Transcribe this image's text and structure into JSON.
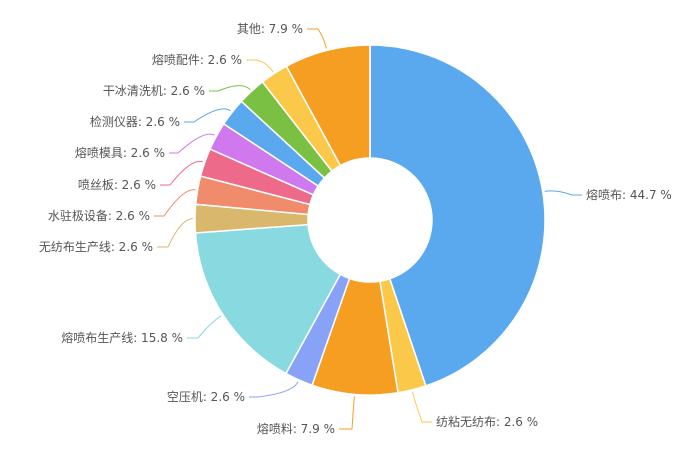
{
  "chart_data": {
    "type": "pie",
    "donut": true,
    "start_angle_deg": 90,
    "direction": "clockwise",
    "slices": [
      {
        "name": "熔喷布",
        "value": 44.7,
        "label": "熔喷布: 44.7 %",
        "color": "#5aa8ee"
      },
      {
        "name": "纺粘无纺布",
        "value": 2.6,
        "label": "纺粘无纺布: 2.6 %",
        "color": "#fbc84a"
      },
      {
        "name": "熔喷料",
        "value": 7.9,
        "label": "熔喷料: 7.9 %",
        "color": "#f59e21"
      },
      {
        "name": "空压机",
        "value": 2.6,
        "label": "空压机: 2.6 %",
        "color": "#88a2f7"
      },
      {
        "name": "熔喷布生产线",
        "value": 15.8,
        "label": "熔喷布生产线: 15.8 %",
        "color": "#89d9e0"
      },
      {
        "name": "无纺布生产线",
        "value": 2.6,
        "label": "无纺布生产线: 2.6 %",
        "color": "#d9b86e"
      },
      {
        "name": "水驻极设备",
        "value": 2.6,
        "label": "水驻极设备: 2.6 %",
        "color": "#f08c6b"
      },
      {
        "name": "喷丝板",
        "value": 2.6,
        "label": "喷丝板: 2.6 %",
        "color": "#ee6a8a"
      },
      {
        "name": "熔喷模具",
        "value": 2.6,
        "label": "熔喷模具: 2.6 %",
        "color": "#d078ee"
      },
      {
        "name": "检测仪器",
        "value": 2.6,
        "label": "检测仪器: 2.6 %",
        "color": "#5aa8ee"
      },
      {
        "name": "干冰清洗机",
        "value": 2.6,
        "label": "干冰清洗机: 2.6 %",
        "color": "#7ac143"
      },
      {
        "name": "熔喷配件",
        "value": 2.6,
        "label": "熔喷配件: 2.6 %",
        "color": "#fbc84a"
      },
      {
        "name": "其他",
        "value": 7.9,
        "label": "其他: 7.9 %",
        "color": "#f59e21"
      }
    ]
  }
}
